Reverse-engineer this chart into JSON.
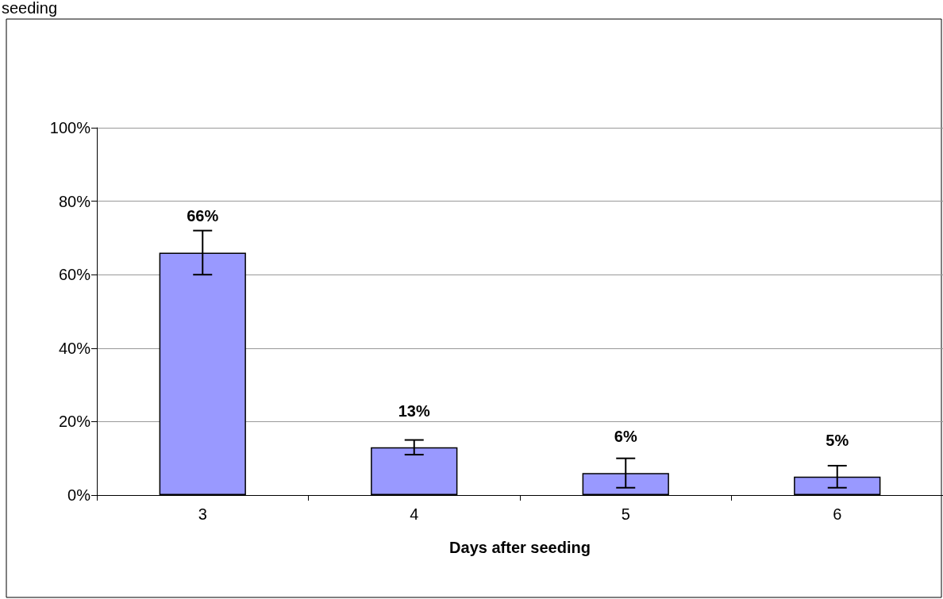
{
  "chart_data": {
    "type": "bar",
    "annotations": [
      "seeding"
    ],
    "xlabel": "Days after seeding",
    "categories": [
      "3",
      "4",
      "5",
      "6"
    ],
    "values": [
      66,
      13,
      6,
      5
    ],
    "color": "#9999ff",
    "errors": [
      6,
      2,
      4,
      3
    ],
    "value_labels": [
      "66%",
      "13%",
      "6%",
      "5%"
    ],
    "ylim": [
      0,
      100
    ],
    "yticks": [
      {
        "value": 0,
        "label": "0%"
      },
      {
        "value": 20,
        "label": "20%"
      },
      {
        "value": 40,
        "label": "40%"
      },
      {
        "value": 60,
        "label": "60%"
      },
      {
        "value": 80,
        "label": "80%"
      },
      {
        "value": 100,
        "label": "100%"
      }
    ],
    "grid": "y"
  }
}
